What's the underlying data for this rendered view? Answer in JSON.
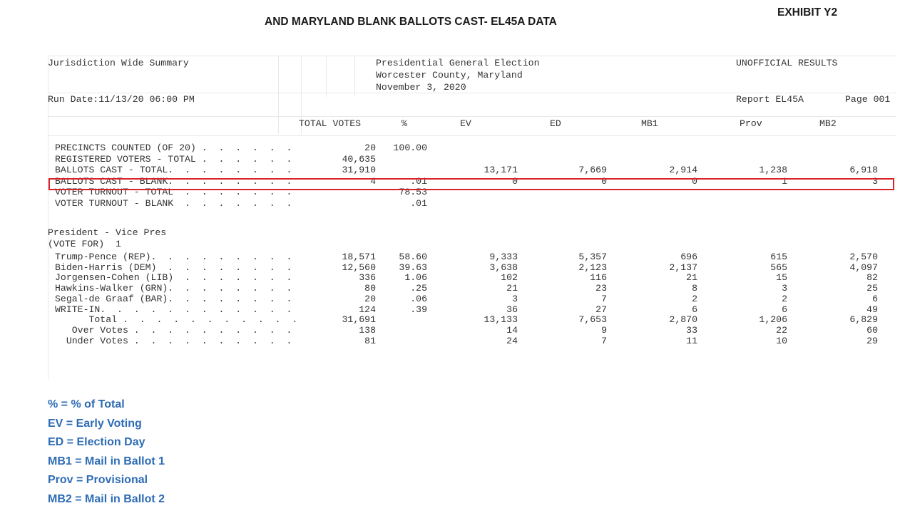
{
  "header": {
    "title": "AND MARYLAND BLANK BALLOTS CAST- EL45A DATA",
    "exhibit": "EXHIBIT Y2"
  },
  "report": {
    "left_title": "Jurisdiction Wide Summary",
    "center_lines": [
      "Presidential General Election",
      "Worcester County, Maryland",
      "November 3, 2020"
    ],
    "right_title": "UNOFFICIAL RESULTS",
    "run_date": "Run Date:11/13/20 06:00 PM",
    "report_id": "Report EL45A",
    "page": "Page 001",
    "columns": [
      "TOTAL VOTES",
      "%",
      "EV",
      "ED",
      "MB1",
      "Prov",
      "MB2"
    ],
    "summary_rows": [
      {
        "label": "PRECINCTS COUNTED (OF 20) .  .  .  .  .  .",
        "total": "20",
        "pct": "100.00",
        "ev": "",
        "ed": "",
        "mb1": "",
        "prov": "",
        "mb2": ""
      },
      {
        "label": "REGISTERED VOTERS - TOTAL .  .  .  .  .  .",
        "total": "40,635",
        "pct": "",
        "ev": "",
        "ed": "",
        "mb1": "",
        "prov": "",
        "mb2": ""
      },
      {
        "label": "BALLOTS CAST - TOTAL.  .  .  .  .  .  .  .",
        "total": "31,910",
        "pct": "",
        "ev": "13,171",
        "ed": "7,669",
        "mb1": "2,914",
        "prov": "1,238",
        "mb2": "6,918"
      },
      {
        "label": "BALLOTS CAST - BLANK.  .  .  .  .  .  .  .",
        "total": "4",
        "pct": ".01",
        "ev": "0",
        "ed": "0",
        "mb1": "0",
        "prov": "1",
        "mb2": "3"
      },
      {
        "label": "VOTER TURNOUT - TOTAL  .  .  .  .  .  .  .",
        "total": "",
        "pct": "78.53",
        "ev": "",
        "ed": "",
        "mb1": "",
        "prov": "",
        "mb2": ""
      },
      {
        "label": "VOTER TURNOUT - BLANK  .  .  .  .  .  .  .",
        "total": "",
        "pct": ".01",
        "ev": "",
        "ed": "",
        "mb1": "",
        "prov": "",
        "mb2": ""
      }
    ],
    "contest_title": "President - Vice Pres",
    "contest_vote_for": "(VOTE FOR)  1",
    "contest_rows": [
      {
        "label": "Trump-Pence (REP).  .  .  .  .  .  .  .  .",
        "total": "18,571",
        "pct": "58.60",
        "ev": "9,333",
        "ed": "5,357",
        "mb1": "696",
        "prov": "615",
        "mb2": "2,570"
      },
      {
        "label": "Biden-Harris (DEM)  .  .  .  .  .  .  .  .",
        "total": "12,560",
        "pct": "39.63",
        "ev": "3,638",
        "ed": "2,123",
        "mb1": "2,137",
        "prov": "565",
        "mb2": "4,097"
      },
      {
        "label": "Jorgensen-Cohen (LIB)  .  .  .  .  .  .  .",
        "total": "336",
        "pct": "1.06",
        "ev": "102",
        "ed": "116",
        "mb1": "21",
        "prov": "15",
        "mb2": "82"
      },
      {
        "label": "Hawkins-Walker (GRN).  .  .  .  .  .  .  .",
        "total": "80",
        "pct": ".25",
        "ev": "21",
        "ed": "23",
        "mb1": "8",
        "prov": "3",
        "mb2": "25"
      },
      {
        "label": "Segal-de Graaf (BAR).  .  .  .  .  .  .  .",
        "total": "20",
        "pct": ".06",
        "ev": "3",
        "ed": "7",
        "mb1": "2",
        "prov": "2",
        "mb2": "6"
      },
      {
        "label": "WRITE-IN.  .  .  .  .  .  .  .  .  .  .  .",
        "total": "124",
        "pct": ".39",
        "ev": "36",
        "ed": "27",
        "mb1": "6",
        "prov": "6",
        "mb2": "49"
      },
      {
        "label": "      Total .  .  .  .  .  .  .  .  .  .  .",
        "total": "31,691",
        "pct": "",
        "ev": "13,133",
        "ed": "7,653",
        "mb1": "2,870",
        "prov": "1,206",
        "mb2": "6,829"
      },
      {
        "label": "   Over Votes .  .  .  .  .  .  .  .  .  .",
        "total": "138",
        "pct": "",
        "ev": "14",
        "ed": "9",
        "mb1": "33",
        "prov": "22",
        "mb2": "60"
      },
      {
        "label": "  Under Votes .  .  .  .  .  .  .  .  .  .",
        "total": "81",
        "pct": "",
        "ev": "24",
        "ed": "7",
        "mb1": "11",
        "prov": "10",
        "mb2": "29"
      }
    ],
    "highlight_color": "#d8232a"
  },
  "legend": [
    "% = % of Total",
    "EV = Early Voting",
    "ED = Election Day",
    "MB1 = Mail in Ballot 1",
    "Prov = Provisional",
    "MB2 = Mail in Ballot 2"
  ]
}
